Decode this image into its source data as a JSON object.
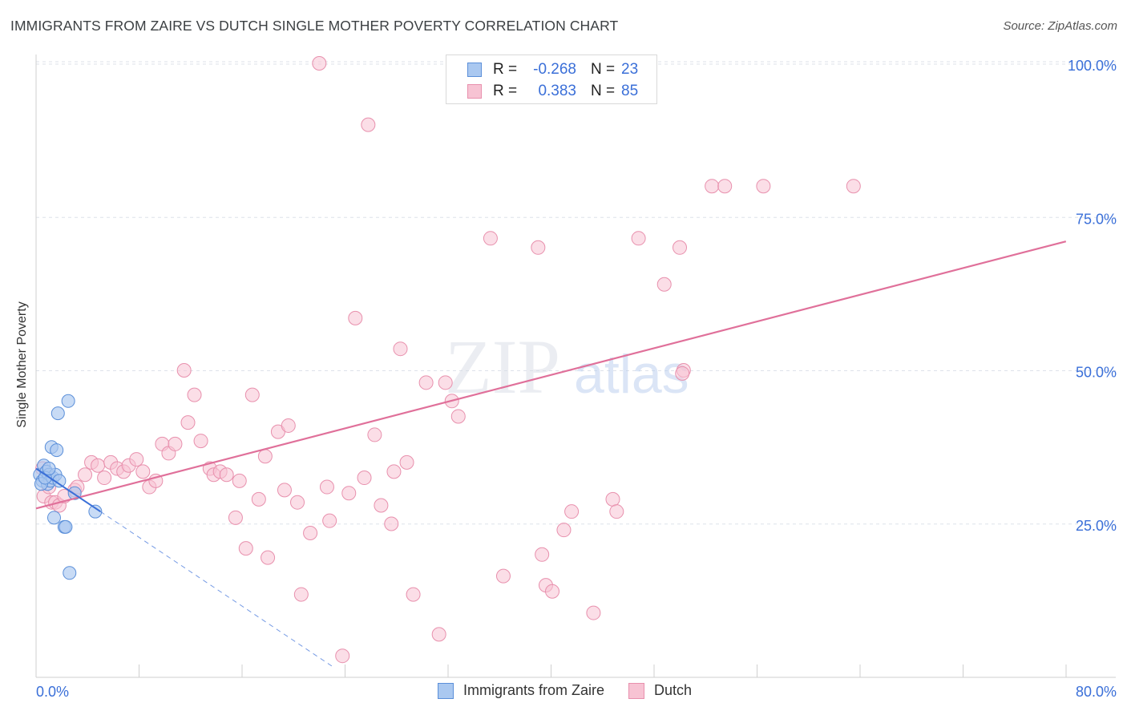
{
  "header": {
    "title": "IMMIGRANTS FROM ZAIRE VS DUTCH SINGLE MOTHER POVERTY CORRELATION CHART",
    "source": "Source: ZipAtlas.com"
  },
  "legend": {
    "series": [
      {
        "r_label": "R =",
        "r_value": "-0.268",
        "n_label": "N =",
        "n_value": "23"
      },
      {
        "r_label": "R =",
        "r_value": "0.383",
        "n_label": "N =",
        "n_value": "85"
      }
    ],
    "bottom": [
      "Immigrants from Zaire",
      "Dutch"
    ]
  },
  "watermark": {
    "zip": "ZIP",
    "atlas": "atlas"
  },
  "colors": {
    "zaire_fill": "#aac8f0",
    "zaire_stroke": "#5b8fd9",
    "zaire_line": "#3a6fd8",
    "dutch_fill": "#f7c3d3",
    "dutch_stroke": "#e890ad",
    "dutch_line": "#e0709a",
    "axis_label": "#3a6fd8",
    "grid": "#dde2ea"
  },
  "chart_data": {
    "type": "scatter",
    "title": "IMMIGRANTS FROM ZAIRE VS DUTCH SINGLE MOTHER POVERTY CORRELATION CHART",
    "xlabel": "",
    "ylabel": "Single Mother Poverty",
    "xlim": [
      0,
      80
    ],
    "ylim": [
      0,
      100
    ],
    "x_tick_labels": [
      "0.0%",
      "80.0%"
    ],
    "y_tick_labels": [
      "25.0%",
      "50.0%",
      "75.0%",
      "100.0%"
    ],
    "y_ticks": [
      25,
      50,
      75,
      100
    ],
    "series": [
      {
        "name": "Immigrants from Zaire",
        "r": -0.268,
        "n": 23,
        "trend": {
          "x0": 0,
          "y0": 34.0,
          "x1": 5.0,
          "y1": 27.0,
          "dashed_to_x": 23.0
        },
        "points": [
          [
            0.3,
            33.0
          ],
          [
            0.5,
            32.0
          ],
          [
            0.6,
            34.5
          ],
          [
            0.8,
            33.5
          ],
          [
            0.9,
            31.5
          ],
          [
            1.0,
            33.0
          ],
          [
            1.1,
            32.0
          ],
          [
            1.2,
            37.5
          ],
          [
            1.3,
            32.5
          ],
          [
            1.4,
            26.0
          ],
          [
            1.5,
            33.0
          ],
          [
            1.6,
            37.0
          ],
          [
            1.7,
            43.0
          ],
          [
            1.8,
            32.0
          ],
          [
            2.2,
            24.5
          ],
          [
            2.3,
            24.5
          ],
          [
            2.5,
            45.0
          ],
          [
            2.6,
            17.0
          ],
          [
            3.0,
            30.0
          ],
          [
            4.6,
            27.0
          ],
          [
            0.4,
            31.5
          ],
          [
            0.7,
            32.5
          ],
          [
            1.0,
            34.0
          ]
        ]
      },
      {
        "name": "Dutch",
        "r": 0.383,
        "n": 85,
        "trend": {
          "x0": 0,
          "y0": 27.5,
          "x1": 80,
          "y1": 71.0
        },
        "points": [
          [
            0.5,
            34.0
          ],
          [
            0.6,
            29.5
          ],
          [
            1.0,
            31.0
          ],
          [
            1.2,
            28.5
          ],
          [
            1.5,
            28.5
          ],
          [
            1.8,
            28.0
          ],
          [
            2.2,
            29.5
          ],
          [
            3.0,
            30.5
          ],
          [
            3.2,
            31.0
          ],
          [
            3.8,
            33.0
          ],
          [
            4.3,
            35.0
          ],
          [
            4.8,
            34.5
          ],
          [
            5.3,
            32.5
          ],
          [
            5.8,
            35.0
          ],
          [
            6.3,
            34.0
          ],
          [
            6.8,
            33.5
          ],
          [
            7.2,
            34.5
          ],
          [
            7.8,
            35.5
          ],
          [
            8.3,
            33.5
          ],
          [
            8.8,
            31.0
          ],
          [
            9.3,
            32.0
          ],
          [
            9.8,
            38.0
          ],
          [
            10.3,
            36.5
          ],
          [
            10.8,
            38.0
          ],
          [
            11.5,
            50.0
          ],
          [
            11.8,
            41.5
          ],
          [
            12.3,
            46.0
          ],
          [
            12.8,
            38.5
          ],
          [
            13.5,
            34.0
          ],
          [
            13.8,
            33.0
          ],
          [
            14.3,
            33.5
          ],
          [
            14.8,
            33.0
          ],
          [
            15.5,
            26.0
          ],
          [
            15.8,
            32.0
          ],
          [
            16.3,
            21.0
          ],
          [
            16.8,
            46.0
          ],
          [
            17.3,
            29.0
          ],
          [
            17.8,
            36.0
          ],
          [
            18.0,
            19.5
          ],
          [
            18.8,
            40.0
          ],
          [
            19.3,
            30.5
          ],
          [
            19.6,
            41.0
          ],
          [
            20.3,
            28.5
          ],
          [
            20.6,
            13.5
          ],
          [
            21.3,
            23.5
          ],
          [
            22.0,
            100.0
          ],
          [
            22.6,
            31.0
          ],
          [
            22.8,
            25.5
          ],
          [
            23.8,
            3.5
          ],
          [
            24.3,
            30.0
          ],
          [
            24.8,
            58.5
          ],
          [
            25.5,
            32.5
          ],
          [
            25.8,
            90.0
          ],
          [
            26.3,
            39.5
          ],
          [
            26.8,
            28.0
          ],
          [
            27.6,
            25.0
          ],
          [
            27.8,
            33.5
          ],
          [
            28.3,
            53.5
          ],
          [
            28.8,
            35.0
          ],
          [
            29.3,
            13.5
          ],
          [
            30.3,
            48.0
          ],
          [
            31.3,
            7.0
          ],
          [
            31.8,
            48.0
          ],
          [
            32.3,
            45.0
          ],
          [
            32.8,
            42.5
          ],
          [
            35.3,
            71.5
          ],
          [
            36.3,
            16.5
          ],
          [
            39.0,
            70.0
          ],
          [
            39.3,
            20.0
          ],
          [
            39.6,
            15.0
          ],
          [
            40.1,
            14.0
          ],
          [
            41.0,
            24.0
          ],
          [
            41.6,
            27.0
          ],
          [
            43.3,
            10.5
          ],
          [
            44.8,
            29.0
          ],
          [
            45.1,
            27.0
          ],
          [
            46.8,
            71.5
          ],
          [
            48.8,
            64.0
          ],
          [
            50.0,
            70.0
          ],
          [
            50.3,
            50.0
          ],
          [
            52.5,
            80.0
          ],
          [
            53.5,
            80.0
          ],
          [
            56.5,
            80.0
          ],
          [
            63.5,
            80.0
          ],
          [
            50.2,
            49.5
          ]
        ]
      }
    ]
  }
}
